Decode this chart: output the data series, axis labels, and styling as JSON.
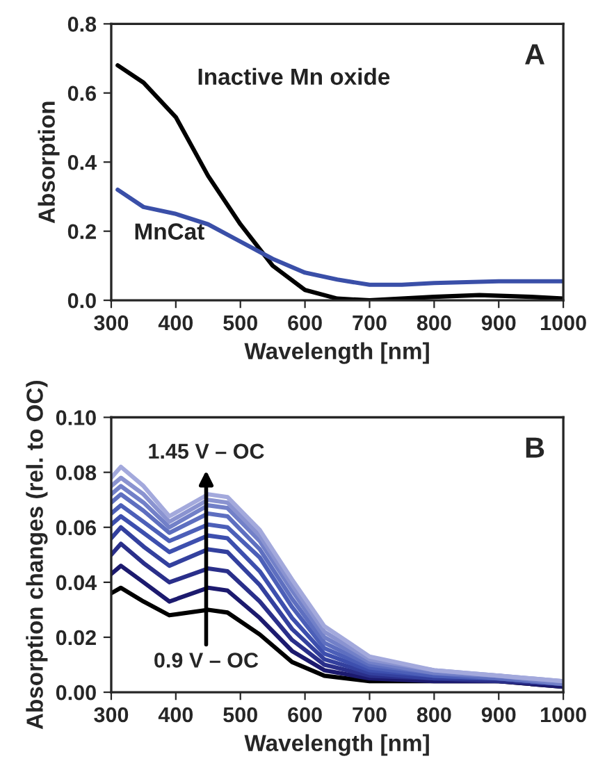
{
  "chart_data": [
    {
      "type": "line",
      "xlabel": "Wavelength [nm]",
      "ylabel": "Absorption",
      "annotations": [
        "A"
      ],
      "xlim": [
        300,
        1000
      ],
      "xticks": [
        300,
        400,
        500,
        600,
        700,
        800,
        900,
        1000
      ],
      "ylim": [
        0,
        0.8
      ],
      "yticks": [
        {
          "value": 0,
          "label": "0.0"
        },
        {
          "value": 0.2,
          "label": "0.2"
        },
        {
          "value": 0.4,
          "label": "0.4"
        },
        {
          "value": 0.6,
          "label": "0.6"
        },
        {
          "value": 0.8,
          "label": "0.8"
        }
      ],
      "grid": false,
      "legend": false,
      "line_style": "solid",
      "marker": "none",
      "series": [
        {
          "name": "Inactive Mn oxide",
          "color": "#000000",
          "x": [
            310,
            350,
            400,
            450,
            500,
            550,
            600,
            650,
            700,
            800,
            870,
            950,
            1000
          ],
          "values": [
            0.68,
            0.63,
            0.53,
            0.36,
            0.22,
            0.1,
            0.03,
            0.005,
            0.0,
            0.01,
            0.015,
            0.01,
            0.005
          ]
        },
        {
          "name": "MnCat",
          "color": "#3a4fa8",
          "x": [
            310,
            350,
            400,
            450,
            500,
            550,
            600,
            650,
            700,
            750,
            800,
            900,
            1000
          ],
          "values": [
            0.32,
            0.27,
            0.25,
            0.22,
            0.17,
            0.12,
            0.08,
            0.06,
            0.045,
            0.045,
            0.05,
            0.055,
            0.055
          ]
        }
      ]
    },
    {
      "type": "line",
      "xlabel": "Wavelength [nm]",
      "ylabel": "Absorption changes (rel. to OC)",
      "annotations": [
        "B",
        "0.9 V – OC",
        "1.45 V – OC"
      ],
      "xlim": [
        300,
        1000
      ],
      "xticks": [
        300,
        400,
        500,
        600,
        700,
        800,
        900,
        1000
      ],
      "ylim": [
        0,
        0.1
      ],
      "yticks": [
        {
          "value": 0,
          "label": "0.00"
        },
        {
          "value": 0.02,
          "label": "0.02"
        },
        {
          "value": 0.04,
          "label": "0.04"
        },
        {
          "value": 0.06,
          "label": "0.06"
        },
        {
          "value": 0.08,
          "label": "0.08"
        },
        {
          "value": 0.1,
          "label": "0.10"
        }
      ],
      "grid": false,
      "legend": false,
      "line_style": "solid",
      "marker": "none",
      "x": [
        300,
        315,
        350,
        390,
        450,
        480,
        530,
        580,
        630,
        700,
        800,
        900,
        1000
      ],
      "series": [
        {
          "color": "#000000",
          "values": [
            0.036,
            0.038,
            0.033,
            0.028,
            0.03,
            0.029,
            0.021,
            0.011,
            0.006,
            0.004,
            0.004,
            0.004,
            0.002
          ]
        },
        {
          "color": "#1c1a6e",
          "values": [
            0.043,
            0.046,
            0.04,
            0.033,
            0.038,
            0.037,
            0.027,
            0.015,
            0.008,
            0.005,
            0.004,
            0.004,
            0.002
          ]
        },
        {
          "color": "#2a2f8a",
          "values": [
            0.05,
            0.054,
            0.047,
            0.04,
            0.045,
            0.044,
            0.033,
            0.019,
            0.01,
            0.006,
            0.005,
            0.004,
            0.003
          ]
        },
        {
          "color": "#33409e",
          "values": [
            0.056,
            0.06,
            0.053,
            0.046,
            0.052,
            0.051,
            0.039,
            0.023,
            0.012,
            0.007,
            0.005,
            0.005,
            0.003
          ]
        },
        {
          "color": "#3d4fae",
          "values": [
            0.061,
            0.064,
            0.058,
            0.051,
            0.057,
            0.056,
            0.044,
            0.027,
            0.014,
            0.008,
            0.006,
            0.005,
            0.003
          ]
        },
        {
          "color": "#4c5fb8",
          "values": [
            0.065,
            0.068,
            0.062,
            0.055,
            0.061,
            0.06,
            0.049,
            0.031,
            0.016,
            0.009,
            0.006,
            0.005,
            0.003
          ]
        },
        {
          "color": "#5e6fc0",
          "values": [
            0.069,
            0.072,
            0.066,
            0.058,
            0.065,
            0.064,
            0.052,
            0.034,
            0.018,
            0.01,
            0.007,
            0.005,
            0.003
          ]
        },
        {
          "color": "#7280c8",
          "values": [
            0.072,
            0.075,
            0.069,
            0.06,
            0.068,
            0.067,
            0.055,
            0.037,
            0.02,
            0.011,
            0.007,
            0.006,
            0.003
          ]
        },
        {
          "color": "#8a93d0",
          "values": [
            0.075,
            0.078,
            0.072,
            0.062,
            0.07,
            0.069,
            0.057,
            0.039,
            0.022,
            0.012,
            0.008,
            0.006,
            0.004
          ]
        },
        {
          "color": "#a3a9dc",
          "values": [
            0.078,
            0.082,
            0.075,
            0.064,
            0.072,
            0.071,
            0.059,
            0.041,
            0.024,
            0.013,
            0.008,
            0.006,
            0.004
          ]
        }
      ]
    }
  ]
}
